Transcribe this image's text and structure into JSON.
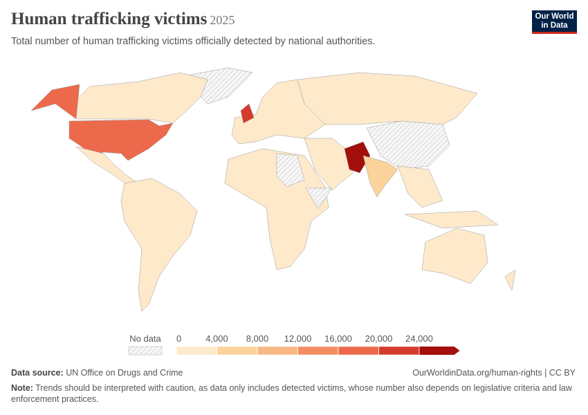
{
  "header": {
    "title": "Human trafficking victims",
    "year": "2025",
    "subtitle": "Total number of human trafficking victims officially detected by national authorities.",
    "logo": "Our World in Data"
  },
  "legend": {
    "no_data": "No data",
    "ticks": [
      0,
      {
        "value": 4000,
        "label": "4,000"
      },
      {
        "value": 8000,
        "label": "8,000"
      },
      {
        "value": 12000,
        "label": "12,000"
      },
      {
        "value": 16000,
        "label": "16,000"
      },
      {
        "value": 20000,
        "label": "20,000"
      },
      {
        "value": 24000,
        "label": "24,000"
      }
    ],
    "colors": [
      "#fee9cb",
      "#fbd39b",
      "#f8b884",
      "#f48d62",
      "#ec6a4b",
      "#d63a2b",
      "#a30f0c"
    ]
  },
  "footer": {
    "source_label": "Data source:",
    "source": "UN Office on Drugs and Crime",
    "url": "OurWorldinData.org/human-rights | CC BY",
    "note_label": "Note:",
    "note": "Trends should be interpreted with caution, as data only includes detected victims, whose number also depends on legislative criteria and law enforcement practices."
  }
}
